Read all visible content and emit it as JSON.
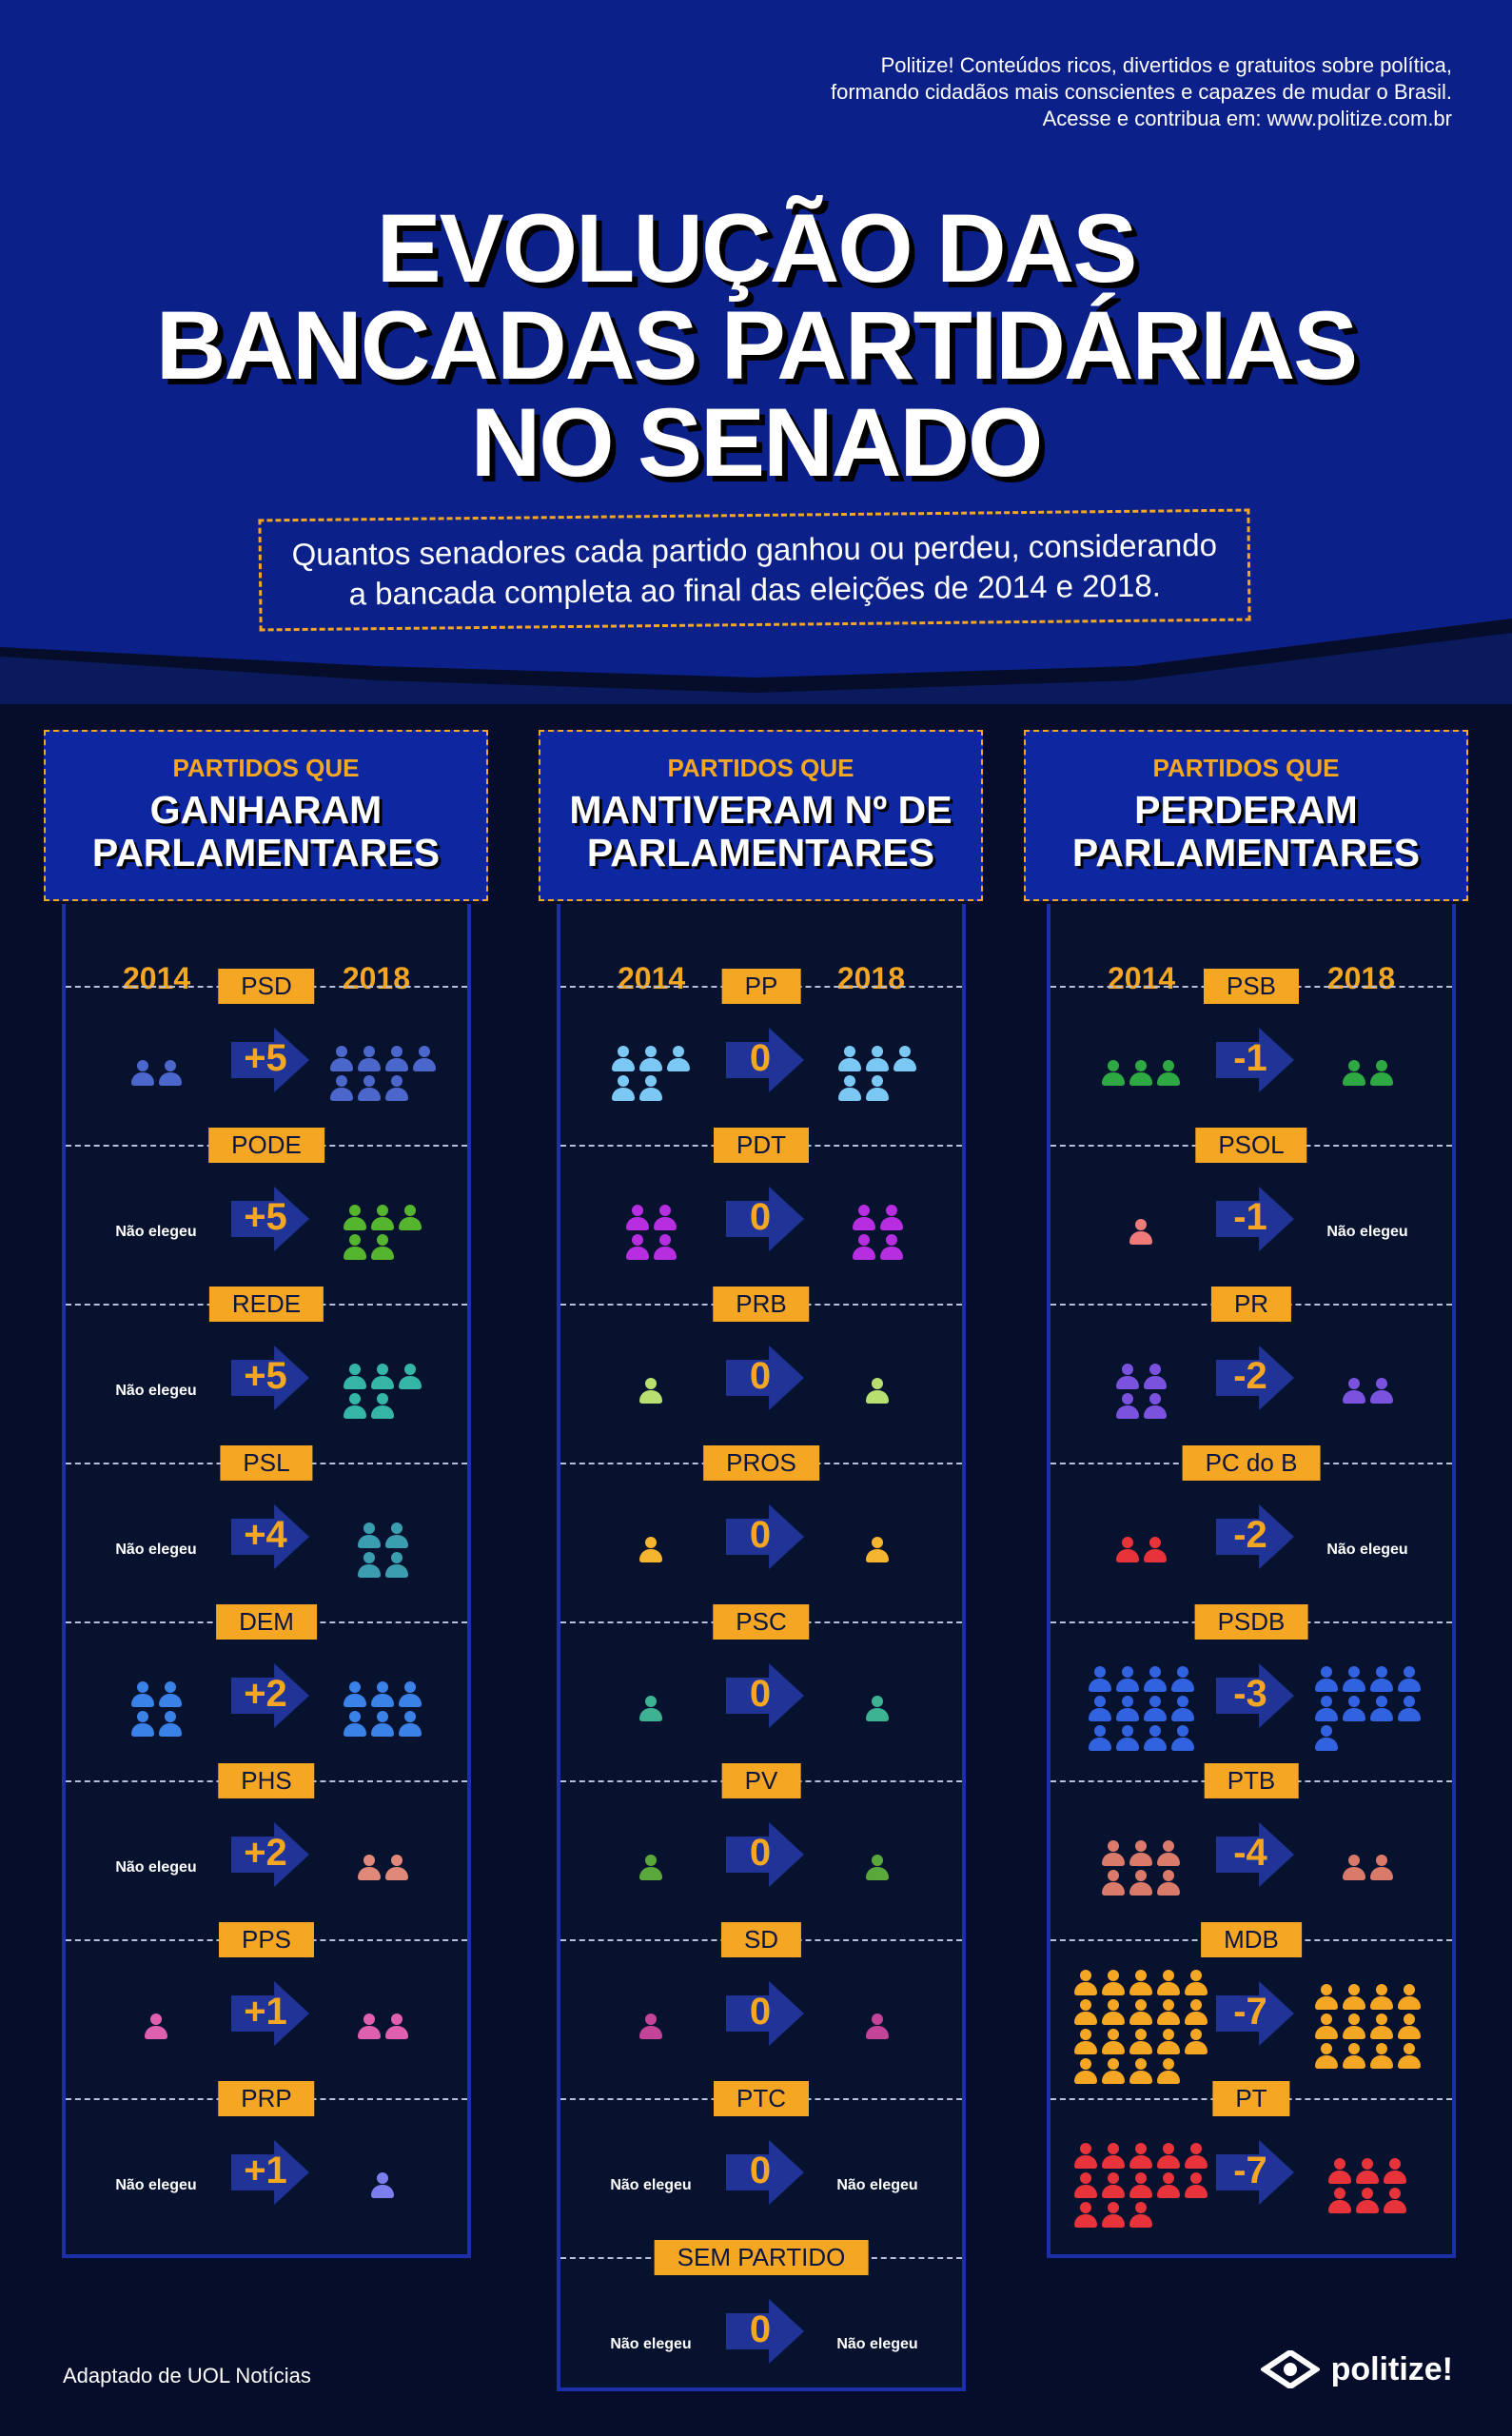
{
  "tagline": [
    "Politize! Conteúdos ricos, divertidos e gratuitos sobre política,",
    "formando cidadãos mais conscientes e capazes de mudar o Brasil.",
    "Acesse e contribua em: www.politize.com.br"
  ],
  "title": [
    "EVOLUÇÃO DAS",
    "BANCADAS PARTIDÁRIAS",
    "NO SENADO"
  ],
  "subtitle": [
    "Quantos senadores cada partido ganhou ou perdeu, considerando",
    "a bancada completa ao final das eleições de 2014 e 2018."
  ],
  "year_from": "2014",
  "year_to": "2018",
  "not_elected_text": "Não elegeu",
  "columns": [
    {
      "kicker": "PARTIDOS QUE",
      "heading": [
        "GANHARAM",
        "PARLAMENTARES"
      ],
      "parties": [
        {
          "name": "PSD",
          "delta": "+5",
          "s2014": 2,
          "s2018": 7,
          "color": "#4c67cc"
        },
        {
          "name": "PODE",
          "delta": "+5",
          "s2014": 0,
          "s2018": 5,
          "color": "#55b52f"
        },
        {
          "name": "REDE",
          "delta": "+5",
          "s2014": 0,
          "s2018": 5,
          "color": "#35b5a6"
        },
        {
          "name": "PSL",
          "delta": "+4",
          "s2014": 0,
          "s2018": 4,
          "color": "#3b9eb0"
        },
        {
          "name": "DEM",
          "delta": "+2",
          "s2014": 4,
          "s2018": 6,
          "color": "#3b82e8"
        },
        {
          "name": "PHS",
          "delta": "+2",
          "s2014": 0,
          "s2018": 2,
          "color": "#e0897a"
        },
        {
          "name": "PPS",
          "delta": "+1",
          "s2014": 1,
          "s2018": 2,
          "color": "#e060b0"
        },
        {
          "name": "PRP",
          "delta": "+1",
          "s2014": 0,
          "s2018": 1,
          "color": "#7c7ef0"
        }
      ]
    },
    {
      "kicker": "PARTIDOS QUE",
      "heading": [
        "MANTIVERAM  Nº DE",
        "PARLAMENTARES"
      ],
      "parties": [
        {
          "name": "PP",
          "delta": "0",
          "s2014": 5,
          "s2018": 5,
          "color": "#7cc8f5"
        },
        {
          "name": "PDT",
          "delta": "0",
          "s2014": 4,
          "s2018": 4,
          "color": "#b62ee0"
        },
        {
          "name": "PRB",
          "delta": "0",
          "s2014": 1,
          "s2018": 1,
          "color": "#b8e070"
        },
        {
          "name": "PROS",
          "delta": "0",
          "s2014": 1,
          "s2018": 1,
          "color": "#f5b52e"
        },
        {
          "name": "PSC",
          "delta": "0",
          "s2014": 1,
          "s2018": 1,
          "color": "#3db394"
        },
        {
          "name": "PV",
          "delta": "0",
          "s2014": 1,
          "s2018": 1,
          "color": "#5aa83b"
        },
        {
          "name": "SD",
          "delta": "0",
          "s2014": 1,
          "s2018": 1,
          "color": "#c4449a"
        },
        {
          "name": "PTC",
          "delta": "0",
          "s2014": 0,
          "s2018": 0,
          "color": "#ffffff"
        },
        {
          "name": "SEM PARTIDO",
          "delta": "0",
          "s2014": 0,
          "s2018": 0,
          "color": "#ffffff"
        }
      ]
    },
    {
      "kicker": "PARTIDOS QUE",
      "heading": [
        "PERDERAM",
        "PARLAMENTARES"
      ],
      "parties": [
        {
          "name": "PSB",
          "delta": "-1",
          "s2014": 3,
          "s2018": 2,
          "color": "#2ea843"
        },
        {
          "name": "PSOL",
          "delta": "-1",
          "s2014": 1,
          "s2018": 0,
          "color": "#f07a7a"
        },
        {
          "name": "PR",
          "delta": "-2",
          "s2014": 4,
          "s2018": 2,
          "color": "#7a52dd"
        },
        {
          "name": "PC do B",
          "delta": "-2",
          "s2014": 2,
          "s2018": 0,
          "color": "#e8333a"
        },
        {
          "name": "PSDB",
          "delta": "-3",
          "s2014": 12,
          "s2018": 9,
          "color": "#3162e0"
        },
        {
          "name": "PTB",
          "delta": "-4",
          "s2014": 6,
          "s2018": 2,
          "color": "#d97a6a"
        },
        {
          "name": "MDB",
          "delta": "-7",
          "s2014": 19,
          "s2018": 12,
          "color": "#f5a623"
        },
        {
          "name": "PT",
          "delta": "-7",
          "s2014": 13,
          "s2018": 6,
          "color": "#e8333a"
        }
      ]
    }
  ],
  "source": "Adaptado de UOL Notícias",
  "logo_text": "politize!",
  "logo_icon": "politize-logo-icon"
}
